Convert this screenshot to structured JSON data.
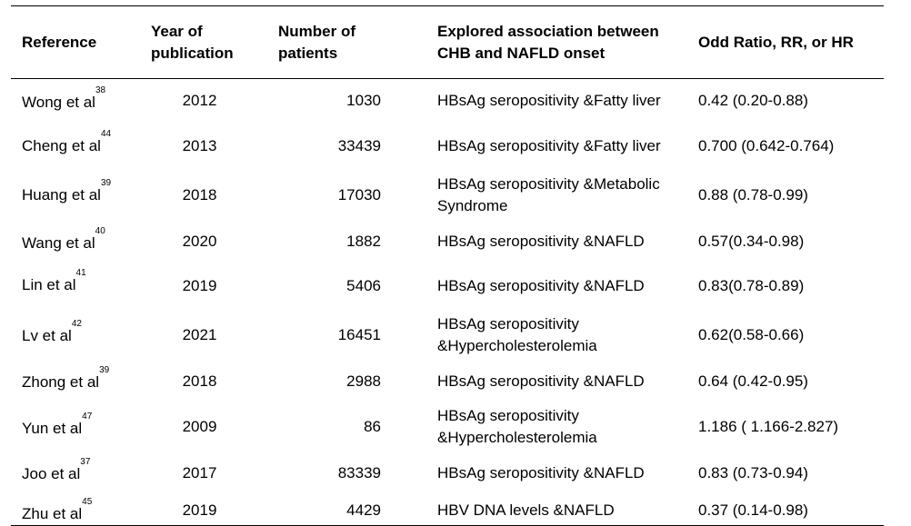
{
  "table": {
    "headers": {
      "reference": "Reference",
      "year_line1": "Year of",
      "year_line2": "publication",
      "patients_line1": "Number of",
      "patients_line2": "patients",
      "assoc_line1": "Explored association between",
      "assoc_line2": "CHB and NAFLD onset",
      "ratio": "Odd Ratio, RR, or HR"
    },
    "rows": [
      {
        "author": "Wong et al",
        "ref": "38",
        "year": "2012",
        "patients": "1030",
        "assoc_line1": "HBsAg seropositivity &Fatty liver",
        "assoc_line2": "",
        "ratio": "0.42 (0.20-0.88)"
      },
      {
        "author": "Cheng et al",
        "ref": "44",
        "year": "2013",
        "patients": "33439",
        "assoc_line1": "HBsAg seropositivity &Fatty liver",
        "assoc_line2": "",
        "ratio": "0.700 (0.642-0.764)"
      },
      {
        "author": "Huang et al",
        "ref": "39",
        "year": "2018",
        "patients": "17030",
        "assoc_line1": "HBsAg seropositivity &Metabolic",
        "assoc_line2": "Syndrome",
        "ratio": "0.88 (0.78-0.99)"
      },
      {
        "author": "Wang et al",
        "ref": "40",
        "year": "2020",
        "patients": "1882",
        "assoc_line1": "HBsAg seropositivity &NAFLD",
        "assoc_line2": "",
        "ratio": "0.57(0.34-0.98)"
      },
      {
        "author": "Lin et al",
        "ref": "41",
        "year": "2019",
        "patients": "5406",
        "assoc_line1": "HBsAg seropositivity &NAFLD",
        "assoc_line2": "",
        "ratio": "0.83(0.78-0.89)"
      },
      {
        "author": "Lv et al",
        "ref": "42",
        "year": "2021",
        "patients": "16451",
        "assoc_line1": "HBsAg seropositivity",
        "assoc_line2": "&Hypercholesterolemia",
        "ratio": "0.62(0.58-0.66)"
      },
      {
        "author": "Zhong et al",
        "ref": "39",
        "year": "2018",
        "patients": "2988",
        "assoc_line1": "HBsAg seropositivity &NAFLD",
        "assoc_line2": "",
        "ratio": "0.64 (0.42-0.95)"
      },
      {
        "author": "Yun et al",
        "ref": "47",
        "year": "2009",
        "patients": "86",
        "assoc_line1": "HBsAg seropositivity",
        "assoc_line2": "&Hypercholesterolemia",
        "ratio": "1.186 ( 1.166-2.827)"
      },
      {
        "author": "Joo et al",
        "ref": "37",
        "year": "2017",
        "patients": "83339",
        "assoc_line1": "HBsAg seropositivity &NAFLD",
        "assoc_line2": "",
        "ratio": "0.83 (0.73-0.94)"
      },
      {
        "author": "Zhu et al",
        "ref": "45",
        "year": "2019",
        "patients": "4429",
        "assoc_line1": "HBV DNA levels &NAFLD",
        "assoc_line2": "",
        "ratio": "0.37 (0.14-0.98)"
      }
    ]
  }
}
